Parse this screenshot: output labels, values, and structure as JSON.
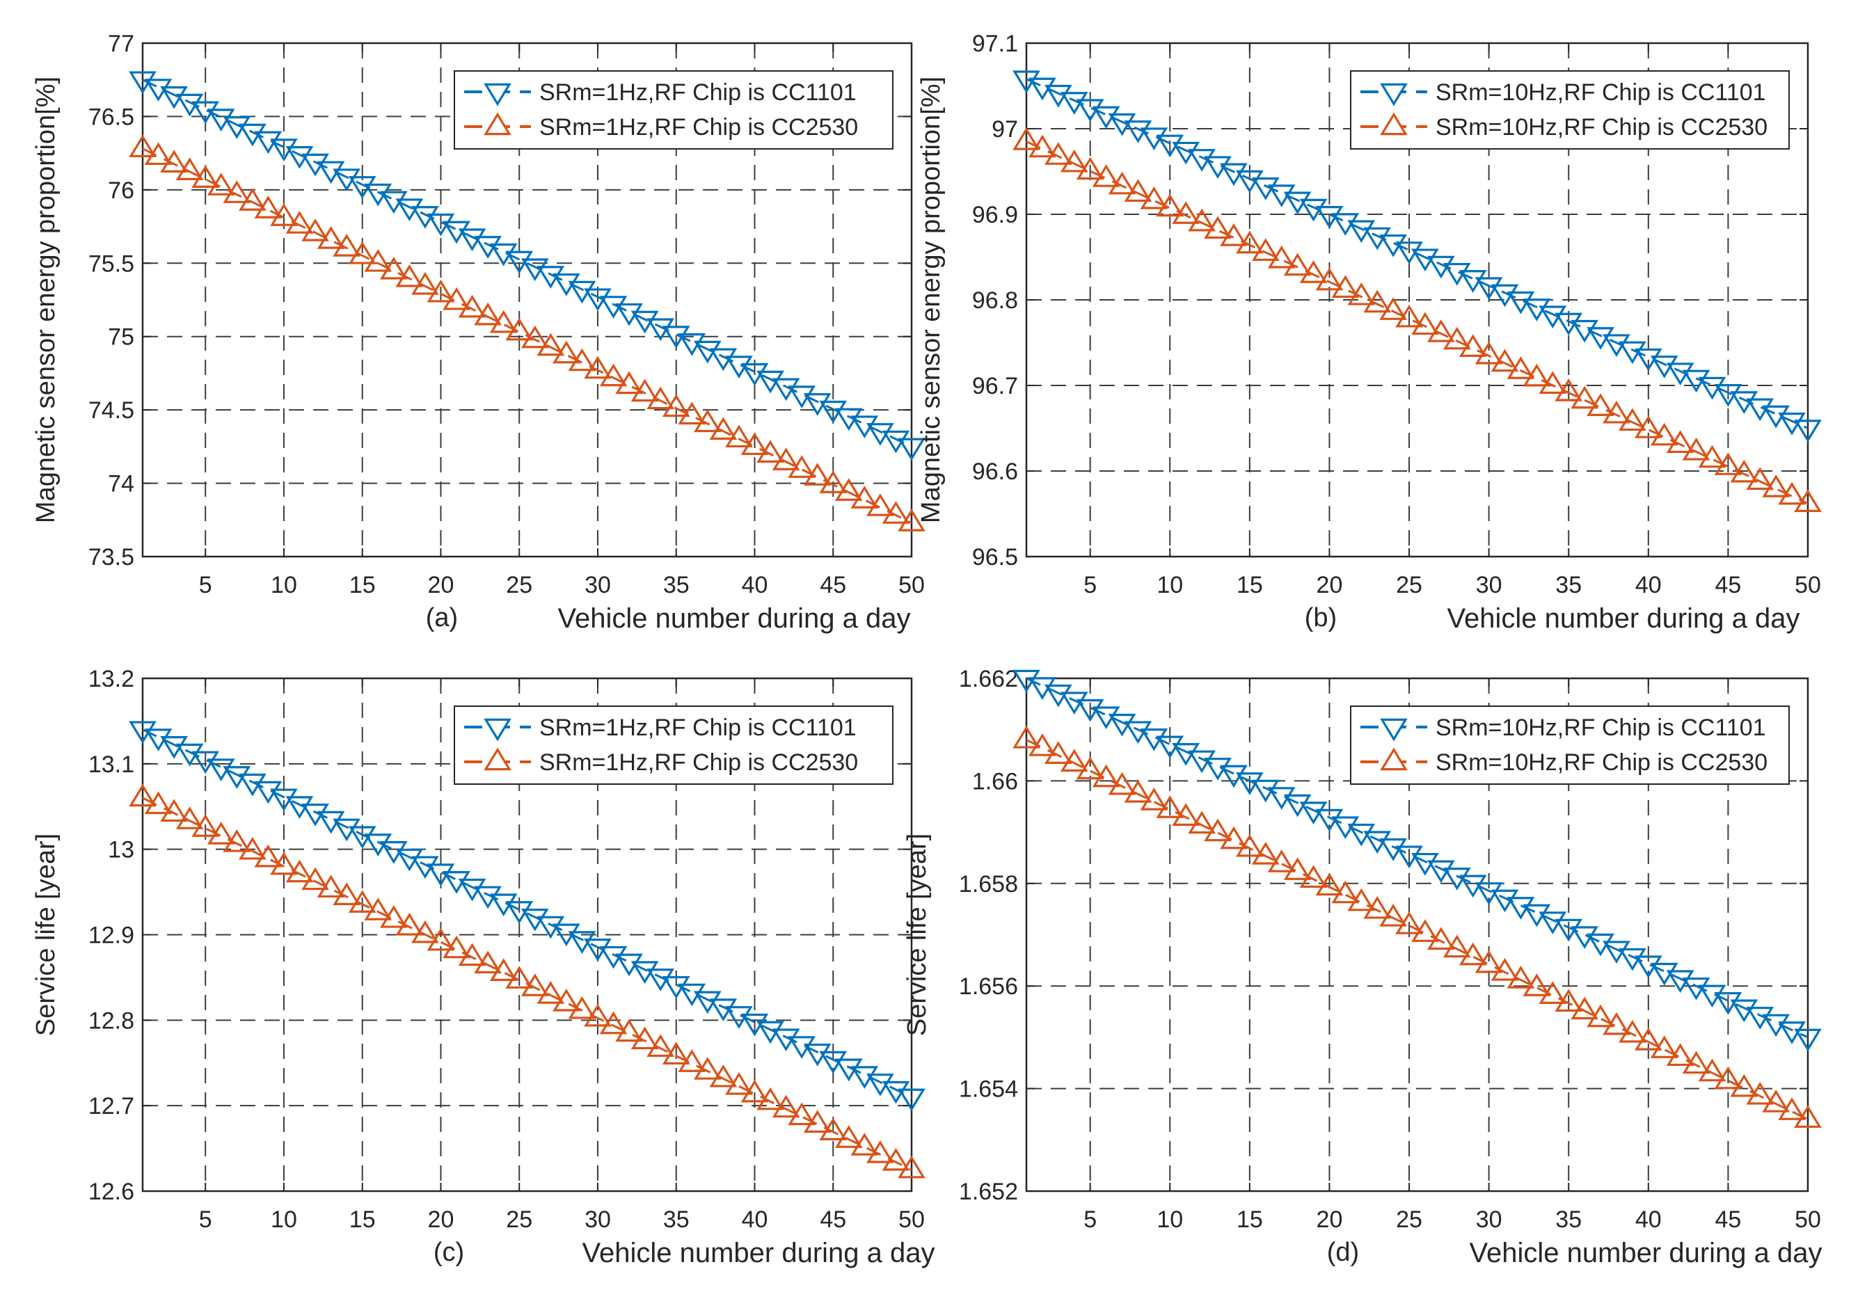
{
  "chart_data": [
    {
      "type": "line",
      "panel_label": "(a)",
      "xlabel": "Vehicle number during a day",
      "ylabel": "Magnetic sensor energy proportion[%]",
      "xlim": [
        1,
        50
      ],
      "ylim": [
        73.5,
        77
      ],
      "xticks": [
        5,
        10,
        15,
        20,
        25,
        30,
        35,
        40,
        45,
        50
      ],
      "yticks": [
        73.5,
        74,
        74.5,
        75,
        75.5,
        76,
        76.5,
        77
      ],
      "ytick_labels": [
        "73.5",
        "74",
        "74.5",
        "75",
        "75.5",
        "76",
        "76.5",
        "77"
      ],
      "grid": true,
      "legend_position": "top-right",
      "series": [
        {
          "name": "SRm=1Hz,RF Chip is CC1101",
          "color": "#0072BD",
          "marker": "triangle-down",
          "start": 76.75,
          "end": 74.25
        },
        {
          "name": "SRm=1Hz,RF Chip is CC2530",
          "color": "#D95319",
          "marker": "triangle-up",
          "start": 76.28,
          "end": 73.73
        }
      ]
    },
    {
      "type": "line",
      "panel_label": "(b)",
      "xlabel": "Vehicle number during a day",
      "ylabel": "Magnetic sensor energy proportion[%]",
      "xlim": [
        1,
        50
      ],
      "ylim": [
        96.5,
        97.1
      ],
      "xticks": [
        5,
        10,
        15,
        20,
        25,
        30,
        35,
        40,
        45,
        50
      ],
      "yticks": [
        96.5,
        96.6,
        96.7,
        96.8,
        96.9,
        97,
        97.1
      ],
      "ytick_labels": [
        "96.5",
        "96.6",
        "96.7",
        "96.8",
        "96.9",
        "97",
        "97.1"
      ],
      "grid": true,
      "legend_position": "top-right",
      "series": [
        {
          "name": "SRm=10Hz,RF Chip is CC1101",
          "color": "#0072BD",
          "marker": "triangle-down",
          "start": 97.058,
          "end": 96.65
        },
        {
          "name": "SRm=10Hz,RF Chip is CC2530",
          "color": "#D95319",
          "marker": "triangle-up",
          "start": 96.985,
          "end": 96.562
        }
      ]
    },
    {
      "type": "line",
      "panel_label": "(c)",
      "xlabel": "Vehicle number during a day",
      "ylabel": "Service life [year]",
      "xlim": [
        1,
        50
      ],
      "ylim": [
        12.6,
        13.2
      ],
      "xticks": [
        5,
        10,
        15,
        20,
        25,
        30,
        35,
        40,
        45,
        50
      ],
      "yticks": [
        12.6,
        12.7,
        12.8,
        12.9,
        13,
        13.1,
        13.2
      ],
      "ytick_labels": [
        "12.6",
        "12.7",
        "12.8",
        "12.9",
        "13",
        "13.1",
        "13.2"
      ],
      "grid": true,
      "legend_position": "top-right",
      "series": [
        {
          "name": "SRm=1Hz,RF Chip is CC1101",
          "color": "#0072BD",
          "marker": "triangle-down",
          "start": 13.14,
          "end": 12.71
        },
        {
          "name": "SRm=1Hz,RF Chip is CC2530",
          "color": "#D95319",
          "marker": "triangle-up",
          "start": 13.06,
          "end": 12.625
        }
      ]
    },
    {
      "type": "line",
      "panel_label": "(d)",
      "xlabel": "Vehicle number during a day",
      "ylabel": "Service life [year]",
      "xlim": [
        1,
        50
      ],
      "ylim": [
        1.652,
        1.662
      ],
      "xticks": [
        5,
        10,
        15,
        20,
        25,
        30,
        35,
        40,
        45,
        50
      ],
      "yticks": [
        1.652,
        1.654,
        1.656,
        1.658,
        1.66,
        1.662
      ],
      "ytick_labels": [
        "1.652",
        "1.654",
        "1.656",
        "1.658",
        "1.66",
        "1.662"
      ],
      "grid": true,
      "legend_position": "top-right",
      "series": [
        {
          "name": "SRm=10Hz,RF Chip is CC1101",
          "color": "#0072BD",
          "marker": "triangle-down",
          "start": 1.662,
          "end": 1.655
        },
        {
          "name": "SRm=10Hz,RF Chip is CC2530",
          "color": "#D95319",
          "marker": "triangle-up",
          "start": 1.6608,
          "end": 1.6534
        }
      ]
    }
  ]
}
